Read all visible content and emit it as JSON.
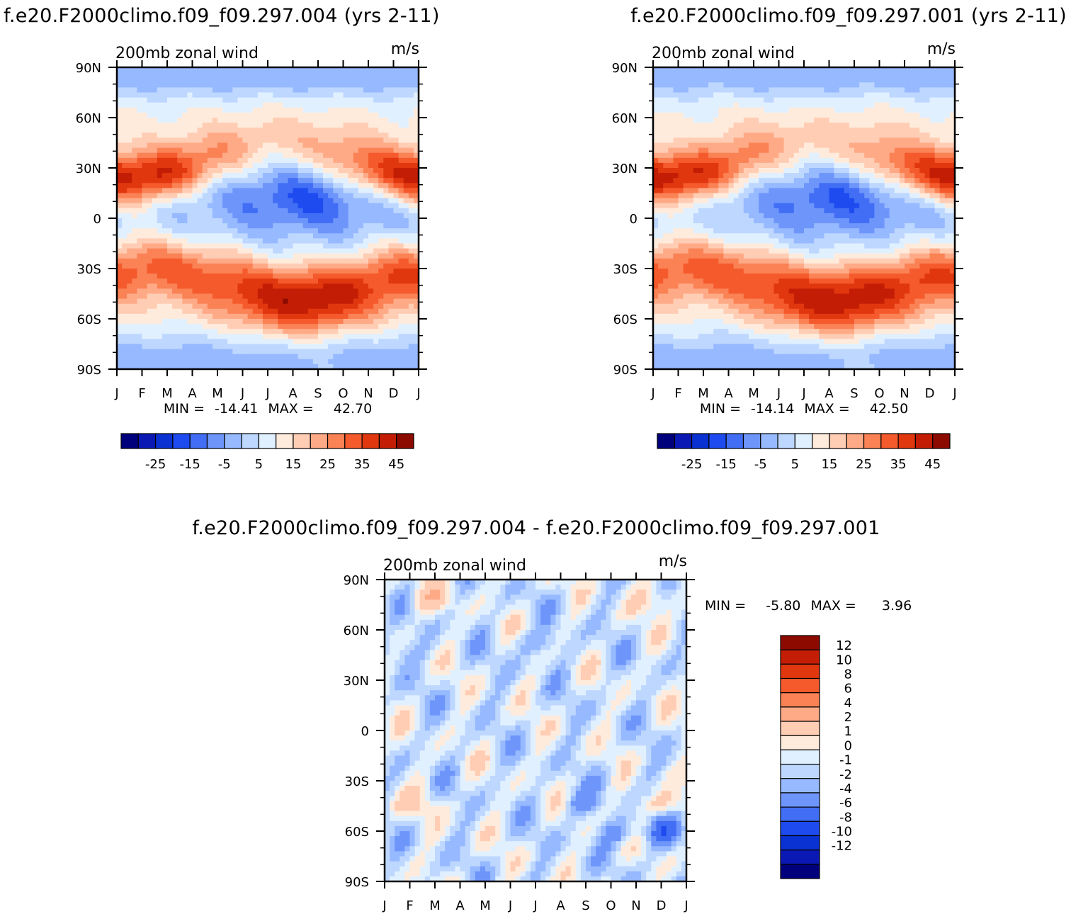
{
  "top_left": {
    "title": "f.e20.F2000climo.f09_f09.297.004 (yrs 2-11)",
    "subtitle": "200mb zonal wind",
    "units": "m/s",
    "stats": {
      "min_label": "MIN =",
      "min": "-14.41",
      "max_label": "MAX =",
      "max": "42.70"
    }
  },
  "top_right": {
    "title": "f.e20.F2000climo.f09_f09.297.001 (yrs 2-11)",
    "subtitle": "200mb zonal wind",
    "units": "m/s",
    "stats": {
      "min_label": "MIN =",
      "min": "-14.14",
      "max_label": "MAX =",
      "max": "42.50"
    }
  },
  "bottom": {
    "title": "f.e20.F2000climo.f09_f09.297.004 - f.e20.F2000climo.f09_f09.297.001",
    "subtitle": "200mb zonal wind",
    "units": "m/s",
    "stats": {
      "min_label": "MIN =",
      "min": "-5.80",
      "max_label": "MAX =",
      "max": "3.96"
    }
  },
  "colors": {
    "field_scale": [
      "#00007d",
      "#0a19b4",
      "#0a32d2",
      "#1e4bf0",
      "#416ef5",
      "#6e96fa",
      "#96b9ff",
      "#bed7ff",
      "#e1f0ff",
      "#ffebdc",
      "#ffcdb4",
      "#ffaa87",
      "#fa8255",
      "#f55a2d",
      "#e1370f",
      "#c31e05",
      "#8c0a00"
    ],
    "diff_scale": [
      "#00007d",
      "#0a19b4",
      "#0a32d2",
      "#1e4bf0",
      "#416ef5",
      "#6e96fa",
      "#96b9ff",
      "#bed7ff",
      "#e1f0ff",
      "#ffebdc",
      "#ffcdb4",
      "#ffaa87",
      "#fa8255",
      "#f55a2d",
      "#e1370f",
      "#c31e05",
      "#8c0a00"
    ]
  },
  "chart_data": [
    {
      "type": "heatmap",
      "id": "case1",
      "title": "f.e20.F2000climo.f09_f09.297.004 (yrs 2-11)",
      "subtitle": "200mb zonal wind",
      "units": "m/s",
      "x_ticks": [
        "J",
        "F",
        "M",
        "A",
        "M",
        "J",
        "J",
        "A",
        "S",
        "O",
        "N",
        "D",
        "J"
      ],
      "y_ticks": [
        "90N",
        "60N",
        "30N",
        "0",
        "30S",
        "60S",
        "90S"
      ],
      "ylim": [
        -90,
        90
      ],
      "levels": [
        -30,
        -25,
        -20,
        -15,
        -10,
        -5,
        0,
        5,
        10,
        15,
        20,
        25,
        30,
        35,
        40,
        45
      ],
      "colorbar_labels": [
        "-25",
        "-15",
        "-5",
        "5",
        "15",
        "25",
        "35",
        "45"
      ],
      "min": -14.41,
      "max": 42.7
    },
    {
      "type": "heatmap",
      "id": "case2",
      "title": "f.e20.F2000climo.f09_f09.297.001 (yrs 2-11)",
      "subtitle": "200mb zonal wind",
      "units": "m/s",
      "x_ticks": [
        "J",
        "F",
        "M",
        "A",
        "M",
        "J",
        "J",
        "A",
        "S",
        "O",
        "N",
        "D",
        "J"
      ],
      "y_ticks": [
        "90N",
        "60N",
        "30N",
        "0",
        "30S",
        "60S",
        "90S"
      ],
      "ylim": [
        -90,
        90
      ],
      "levels": [
        -30,
        -25,
        -20,
        -15,
        -10,
        -5,
        0,
        5,
        10,
        15,
        20,
        25,
        30,
        35,
        40,
        45
      ],
      "colorbar_labels": [
        "-25",
        "-15",
        "-5",
        "5",
        "15",
        "25",
        "35",
        "45"
      ],
      "min": -14.14,
      "max": 42.5
    },
    {
      "type": "heatmap",
      "id": "difference",
      "title": "f.e20.F2000climo.f09_f09.297.004 - f.e20.F2000climo.f09_f09.297.001",
      "subtitle": "200mb zonal wind",
      "units": "m/s",
      "x_ticks": [
        "J",
        "F",
        "M",
        "A",
        "M",
        "J",
        "J",
        "A",
        "S",
        "O",
        "N",
        "D",
        "J"
      ],
      "y_ticks": [
        "90N",
        "60N",
        "30N",
        "0",
        "30S",
        "60S",
        "90S"
      ],
      "ylim": [
        -90,
        90
      ],
      "levels": [
        -12,
        -10,
        -8,
        -6,
        -4,
        -2,
        -1,
        0,
        1,
        2,
        4,
        6,
        8,
        10,
        12
      ],
      "colorbar_labels": [
        "12",
        "10",
        "8",
        "6",
        "4",
        "2",
        "1",
        "0",
        "-1",
        "-2",
        "-4",
        "-6",
        "-8",
        "-10",
        "-12"
      ],
      "min": -5.8,
      "max": 3.96
    }
  ]
}
